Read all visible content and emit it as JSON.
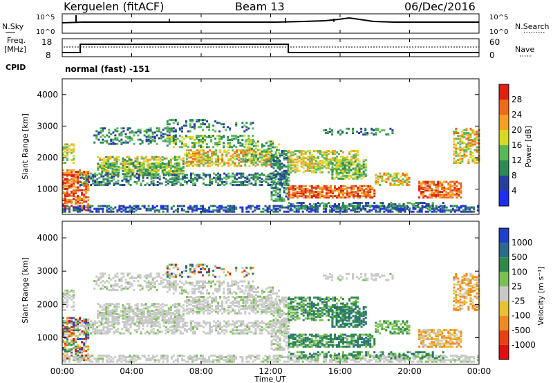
{
  "header": {
    "title": "Kerguelen (fitACF)",
    "beam": "Beam 13",
    "date": "06/Dec/2016"
  },
  "noise_panel": {
    "left_label": "N.Sky",
    "right_label": "N.Search",
    "ticks_left": [
      "10^5",
      "10^0"
    ],
    "ticks_right": [
      "10^5",
      "10^0"
    ]
  },
  "freq_panel": {
    "left_label_1": "Freq.",
    "left_label_2": "[MHz]",
    "ticks_left": [
      "18",
      "8"
    ],
    "right_label": "Nave",
    "ticks_right": [
      "60",
      "0"
    ]
  },
  "cpid": {
    "label": "CPID",
    "value": "normal (fast) -151"
  },
  "x_axis": {
    "label": "Time UT",
    "ticks": [
      "00:00",
      "04:00",
      "08:00",
      "12:00",
      "16:00",
      "20:00",
      "00:00"
    ]
  },
  "chart_data": [
    {
      "type": "heatmap",
      "name": "power",
      "ylabel": "Slant Range [km]",
      "yticks": [
        "1000",
        "2000",
        "3000",
        "4000"
      ],
      "ylim": [
        200,
        4500
      ],
      "colorbar_label": "Power [dB]",
      "colorbar_ticks": [
        "4",
        "8",
        "12",
        "16",
        "20",
        "24",
        "28"
      ],
      "colorbar_colors": [
        "#1f2cf2",
        "#263f9e",
        "#2d8a55",
        "#58b858",
        "#d8d820",
        "#f5a020",
        "#ef6a1a",
        "#e02010"
      ]
    },
    {
      "type": "heatmap",
      "name": "velocity",
      "ylabel": "Slant Range [km]",
      "yticks": [
        "1000",
        "2000",
        "3000",
        "4000"
      ],
      "ylim": [
        200,
        4500
      ],
      "colorbar_label": "Velocity [m s⁻¹]",
      "colorbar_ticks": [
        "1000",
        "500",
        "100",
        "25",
        "-25",
        "-100",
        "-500",
        "-1000"
      ],
      "colorbar_colors": [
        "#1f40c8",
        "#2a6a8a",
        "#2e8a4a",
        "#78c050",
        "#c8c8c8",
        "#e8c030",
        "#f08a20",
        "#e84010",
        "#e01010"
      ]
    }
  ],
  "colors": {
    "axis": "#000000",
    "ground_scatter": "#c0c0c0"
  }
}
